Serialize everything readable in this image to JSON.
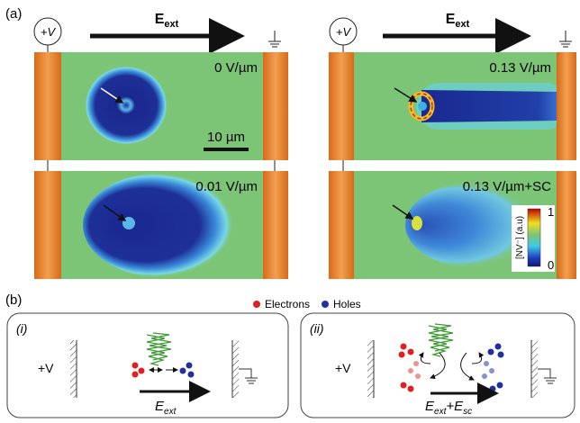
{
  "panel_a": {
    "label": "(a)",
    "columns": [
      {
        "source": "+V",
        "field": {
          "main": "E",
          "sub": "ext"
        }
      },
      {
        "source": "+V",
        "field": {
          "main": "E",
          "sub": "ext"
        }
      }
    ],
    "images": [
      {
        "field_label": "0 V/µm"
      },
      {
        "field_label": "0.13 V/µm"
      },
      {
        "field_label": "0.01 V/µm"
      },
      {
        "field_label": "0.13 V/µm+SC"
      }
    ],
    "scale_bar": "10 µm",
    "colorbar": {
      "title": "[NV⁻] (a.u)",
      "max": "1",
      "min": "0"
    }
  },
  "panel_b": {
    "label": "(b)",
    "legend": [
      "Electrons",
      "Holes"
    ],
    "boxes": [
      {
        "label": "(i)",
        "source": "+V",
        "field": [
          {
            "text": "E",
            "sub": "ext"
          }
        ]
      },
      {
        "label": "(ii)",
        "source": "+V",
        "field": [
          {
            "text": "E",
            "sub": "ext"
          },
          {
            "text": "+E",
            "sub": "sc"
          }
        ]
      }
    ]
  }
}
